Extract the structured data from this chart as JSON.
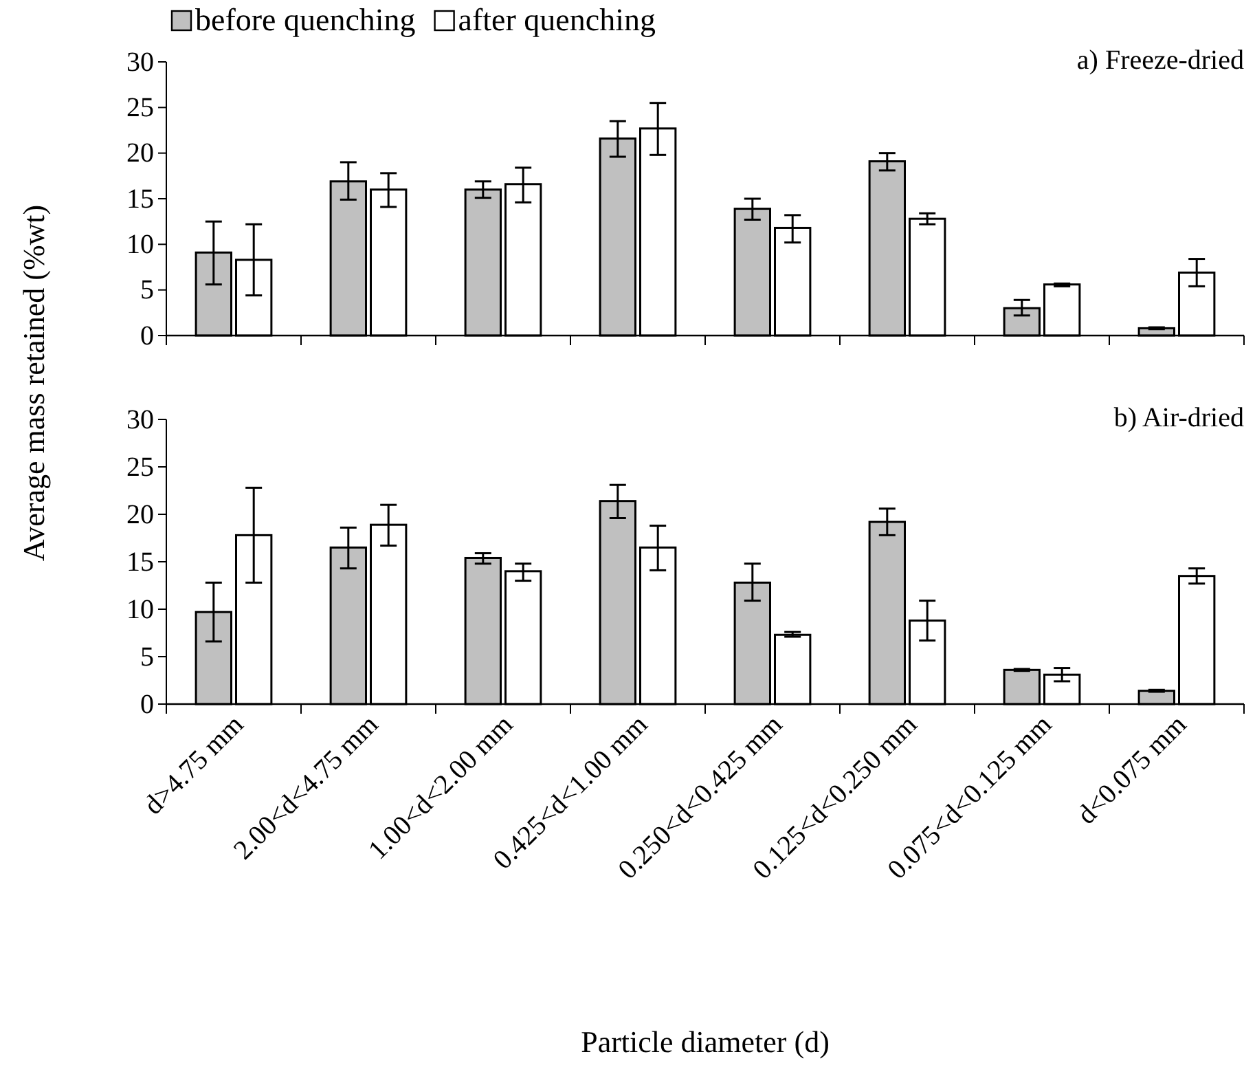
{
  "chart_data": [
    {
      "type": "bar",
      "title": "a) Freeze-dried",
      "ylabel": "Average mass retained (%wt)",
      "categories": [
        null,
        null,
        null,
        null,
        null,
        null,
        null,
        null
      ],
      "series": [
        {
          "name": "before quenching",
          "color": "#c0c0c0",
          "values": [
            9.1,
            16.9,
            16.0,
            21.6,
            13.9,
            19.1,
            3.0,
            0.8
          ],
          "errors": [
            [
              5.6,
              12.5
            ],
            [
              14.9,
              19.0
            ],
            [
              15.1,
              16.9
            ],
            [
              19.6,
              23.5
            ],
            [
              12.7,
              15.0
            ],
            [
              18.1,
              20.0
            ],
            [
              2.2,
              3.9
            ],
            [
              0.7,
              0.9
            ]
          ]
        },
        {
          "name": "after quenching",
          "color": "#ffffff",
          "values": [
            8.3,
            16.0,
            16.6,
            22.7,
            11.8,
            12.8,
            5.6,
            6.9
          ],
          "errors": [
            [
              4.4,
              12.2
            ],
            [
              14.1,
              17.8
            ],
            [
              14.6,
              18.4
            ],
            [
              19.8,
              25.5
            ],
            [
              10.2,
              13.2
            ],
            [
              12.2,
              13.4
            ],
            [
              5.4,
              5.7
            ],
            [
              5.4,
              8.4
            ]
          ]
        }
      ],
      "ylim": [
        0,
        30
      ],
      "yticks": [
        0,
        5,
        10,
        15,
        20,
        25,
        30
      ],
      "legend": "top",
      "tick_labels": "y"
    },
    {
      "type": "bar",
      "title": "b) Air-dried",
      "xlabel": "Particle diameter (d)",
      "categories": [
        "d>4.75 mm",
        "2.00<d<4.75 mm",
        "1.00<d<2.00 mm",
        "0.425<d<1.00 mm",
        "0.250<d<0.425 mm",
        "0.125<d<0.250 mm",
        "0.075<d<0.125 mm",
        "d<0.075 mm"
      ],
      "series": [
        {
          "color": "#c0c0c0",
          "values": [
            9.7,
            16.5,
            15.4,
            21.4,
            12.8,
            19.2,
            3.6,
            1.4
          ],
          "errors": [
            [
              6.6,
              12.8
            ],
            [
              14.3,
              18.6
            ],
            [
              14.8,
              15.9
            ],
            [
              19.6,
              23.1
            ],
            [
              10.9,
              14.8
            ],
            [
              17.8,
              20.6
            ],
            [
              3.5,
              3.7
            ],
            [
              1.3,
              1.5
            ]
          ]
        },
        {
          "color": "#ffffff",
          "values": [
            17.8,
            18.9,
            14.0,
            16.5,
            7.3,
            8.8,
            3.1,
            13.5
          ],
          "errors": [
            [
              12.8,
              22.8
            ],
            [
              16.7,
              21.0
            ],
            [
              13.0,
              14.8
            ],
            [
              14.1,
              18.8
            ],
            [
              7.1,
              7.6
            ],
            [
              6.7,
              10.9
            ],
            [
              2.4,
              3.8
            ],
            [
              12.7,
              14.3
            ]
          ]
        }
      ],
      "ylim": [
        0,
        30
      ],
      "yticks": [
        0,
        5,
        10,
        15,
        20,
        25,
        30
      ]
    }
  ]
}
